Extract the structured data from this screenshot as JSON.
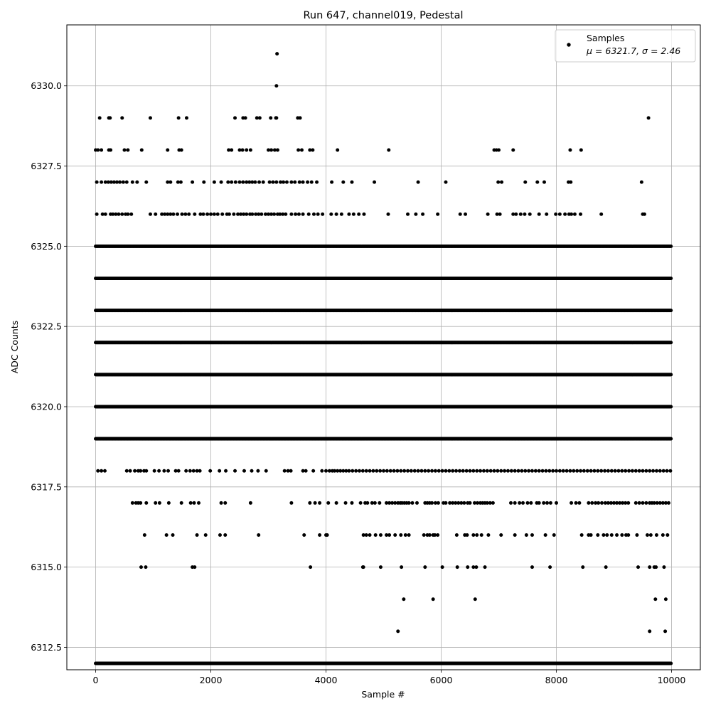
{
  "chart_data": {
    "type": "scatter",
    "title": "Run 647, channel019, Pedestal",
    "xlabel": "Sample #",
    "ylabel": "ADC Counts",
    "xlim": [
      -500,
      10500
    ],
    "ylim": [
      6311.8,
      6331.9
    ],
    "xticks": [
      0,
      2000,
      4000,
      6000,
      8000,
      10000
    ],
    "yticks": [
      6312.5,
      6315.0,
      6317.5,
      6320.0,
      6322.5,
      6325.0,
      6327.5,
      6330.0
    ],
    "xtick_labels": [
      "0",
      "2000",
      "4000",
      "6000",
      "8000",
      "10000"
    ],
    "ytick_labels": [
      "6312.5",
      "6315.0",
      "6317.5",
      "6320.0",
      "6322.5",
      "6325.0",
      "6327.5",
      "6330.0"
    ],
    "grid": true,
    "legend_position": "top-right",
    "series": [
      {
        "name": "Samples",
        "color": "#000000",
        "marker": "circle",
        "n_samples": 10000,
        "sample_step": 10,
        "levels": [
          {
            "y": 6312,
            "x": []
          },
          {
            "y": 6313,
            "x": [
              5250,
              9620,
              9890
            ]
          },
          {
            "y": 6314,
            "x": [
              5350,
              5860,
              6590,
              9720,
              9900
            ]
          },
          {
            "y": 6315,
            "x": [
              790,
              870,
              1680,
              1720,
              3730,
              4640,
              4650,
              4950,
              5310,
              5720,
              6020,
              6280,
              6460,
              6560,
              6610,
              6760,
              7580,
              7890,
              8460,
              8860,
              9420,
              9620,
              9700,
              9730,
              9870
            ]
          },
          {
            "y": 6316,
            "x": [
              850,
              1230,
              1340,
              1760,
              1910,
              2160,
              2250,
              2830,
              3620,
              3890,
              4000,
              4020,
              4650,
              4700,
              4760,
              4860,
              4950,
              5050,
              5100,
              5200,
              5300,
              5380,
              5440,
              5700,
              5760,
              5800,
              5860,
              5890,
              5940,
              6270,
              6410,
              6450,
              6560,
              6620,
              6700,
              6820,
              7040,
              7280,
              7480,
              7580,
              7810,
              7960,
              8440,
              8560,
              8600,
              8720,
              8820,
              8880,
              8960,
              9050,
              9140,
              9210,
              9250,
              9400,
              9580,
              9640,
              9740,
              9850,
              9930
            ]
          },
          {
            "y": 6317,
            "x": [
              640,
              700,
              740,
              780,
              880,
              1040,
              1110,
              1270,
              1490,
              1650,
              1710,
              1790,
              2180,
              2250,
              2690,
              3400,
              3720,
              3810,
              3890,
              4040,
              4180,
              4340,
              4450,
              4600,
              4680,
              4720,
              4800,
              4850,
              4930,
              5050,
              5100,
              5150,
              5200,
              5250,
              5290,
              5320,
              5360,
              5400,
              5440,
              5500,
              5580,
              5720,
              5760,
              5800,
              5840,
              5900,
              5950,
              6040,
              6080,
              6150,
              6200,
              6250,
              6300,
              6350,
              6400,
              6460,
              6500,
              6580,
              6630,
              6680,
              6720,
              6760,
              6800,
              6850,
              6900,
              7210,
              7280,
              7360,
              7420,
              7500,
              7560,
              7660,
              7700,
              7780,
              7840,
              7900,
              8000,
              8260,
              8340,
              8400,
              8560,
              8620,
              8680,
              8730,
              8790,
              8850,
              8900,
              8950,
              9000,
              9050,
              9100,
              9150,
              9200,
              9250,
              9380,
              9440,
              9500,
              9560,
              9620,
              9660,
              9700,
              9750,
              9800,
              9850,
              9900,
              9950
            ]
          },
          {
            "y": 6318,
            "x": [
              40,
              100,
              160,
              540,
              600,
              680,
              740,
              780,
              840,
              880,
              1020,
              1100,
              1190,
              1260,
              1390,
              1440,
              1570,
              1640,
              1700,
              1760,
              1810,
              1990,
              2150,
              2260,
              2420,
              2580,
              2710,
              2820,
              2960,
              3280,
              3340,
              3390,
              3600,
              3650,
              3780,
              3930,
              4000,
              4060,
              4110,
              4150,
              4200,
              4250,
              4300,
              4350,
              4400,
              4460,
              4520,
              4580,
              4640,
              4700,
              4760,
              4820,
              4880,
              4940,
              5000,
              5060,
              5120,
              5180,
              5240,
              5300,
              5360,
              5420,
              5480,
              5540,
              5600,
              5660,
              5720,
              5780,
              5840,
              5900,
              5960,
              6020,
              6080,
              6140,
              6200,
              6260,
              6320,
              6380,
              6440,
              6500,
              6560,
              6620,
              6680,
              6740,
              6800,
              6860,
              6920,
              6980,
              7040,
              7100,
              7160,
              7220,
              7280,
              7340,
              7400,
              7460,
              7520,
              7580,
              7640,
              7700,
              7760,
              7820,
              7880,
              7940,
              8000,
              8060,
              8120,
              8180,
              8240,
              8300,
              8360,
              8420,
              8480,
              8540,
              8600,
              8660,
              8720,
              8780,
              8840,
              8900,
              8960,
              9020,
              9080,
              9140,
              9200,
              9260,
              9320,
              9380,
              9440,
              9500,
              9560,
              9620,
              9680,
              9740,
              9800,
              9860,
              9920,
              9980
            ]
          },
          {
            "y": 6319,
            "x": []
          },
          {
            "y": 6320,
            "x": []
          },
          {
            "y": 6321,
            "x": []
          },
          {
            "y": 6322,
            "x": []
          },
          {
            "y": 6323,
            "x": []
          },
          {
            "y": 6324,
            "x": []
          },
          {
            "y": 6325,
            "x": []
          },
          {
            "y": 6326,
            "x": [
              20,
              120,
              170,
              260,
              300,
              350,
              400,
              460,
              520,
              560,
              620,
              950,
              1040,
              1150,
              1200,
              1250,
              1300,
              1350,
              1420,
              1500,
              1560,
              1620,
              1720,
              1820,
              1870,
              1940,
              2000,
              2060,
              2120,
              2200,
              2280,
              2320,
              2400,
              2470,
              2520,
              2570,
              2620,
              2680,
              2720,
              2780,
              2830,
              2880,
              2950,
              3000,
              3050,
              3100,
              3160,
              3200,
              3250,
              3300,
              3400,
              3470,
              3530,
              3600,
              3700,
              3790,
              3860,
              3940,
              4090,
              4180,
              4270,
              4400,
              4480,
              4570,
              4660,
              5080,
              5420,
              5560,
              5680,
              5940,
              6330,
              6420,
              6810,
              6970,
              7020,
              7250,
              7300,
              7380,
              7450,
              7540,
              7700,
              7830,
              7990,
              8060,
              8150,
              8220,
              8260,
              8320,
              8420,
              8780,
              9500,
              9530
            ]
          },
          {
            "y": 6327,
            "x": [
              20,
              100,
              170,
              220,
              270,
              320,
              370,
              420,
              480,
              540,
              640,
              720,
              880,
              1250,
              1300,
              1430,
              1480,
              1680,
              1880,
              2060,
              2180,
              2300,
              2360,
              2430,
              2500,
              2560,
              2620,
              2670,
              2720,
              2770,
              2840,
              2910,
              3020,
              3080,
              3140,
              3210,
              3260,
              3320,
              3400,
              3460,
              3540,
              3600,
              3680,
              3750,
              3840,
              4100,
              4300,
              4450,
              4840,
              5600,
              6080,
              6990,
              7050,
              7460,
              7670,
              7790,
              8210,
              8250,
              9480
            ]
          },
          {
            "y": 6328,
            "x": [
              0,
              40,
              100,
              230,
              260,
              500,
              560,
              800,
              1250,
              1450,
              1490,
              2310,
              2360,
              2500,
              2550,
              2620,
              2690,
              3000,
              3050,
              3110,
              3160,
              3520,
              3580,
              3720,
              3770,
              4200,
              5090,
              6920,
              6960,
              7000,
              7250,
              8240,
              8430
            ]
          },
          {
            "y": 6329,
            "x": [
              70,
              230,
              250,
              460,
              950,
              1440,
              1580,
              2420,
              2560,
              2600,
              2800,
              2850,
              3040,
              3130,
              3140,
              3510,
              3550,
              9600
            ]
          },
          {
            "y": 6330,
            "x": [
              3140
            ]
          },
          {
            "y": 6331,
            "x": [
              3150
            ]
          }
        ]
      }
    ],
    "legend": {
      "label": "Samples",
      "stats": "μ = 6321.7, σ = 2.46"
    }
  }
}
